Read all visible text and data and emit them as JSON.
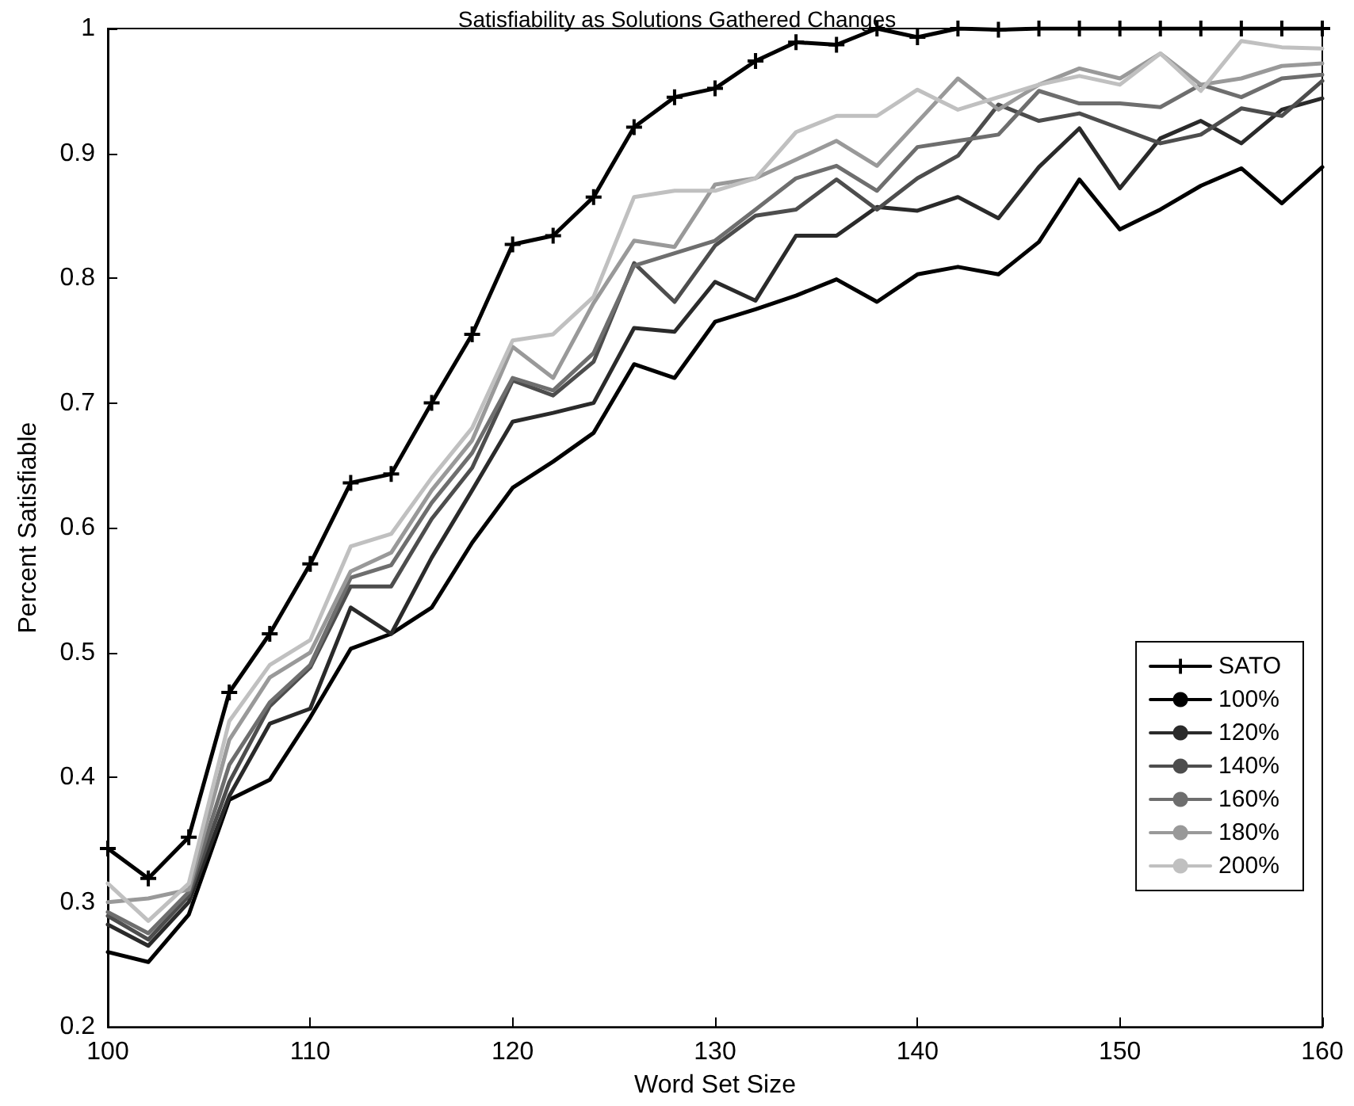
{
  "chart_data": {
    "type": "line",
    "title": "Satisfiability as Solutions Gathered Changes",
    "xlabel": "Word Set Size",
    "ylabel": "Percent Satisfiable",
    "x": [
      100,
      102,
      104,
      106,
      108,
      110,
      112,
      114,
      116,
      118,
      120,
      122,
      124,
      126,
      128,
      130,
      132,
      134,
      136,
      138,
      140,
      142,
      144,
      146,
      148,
      150,
      152,
      154,
      156,
      158,
      160
    ],
    "series": [
      {
        "name": "SATO",
        "color": "#000000",
        "marker": "cross",
        "values": [
          0.343,
          0.319,
          0.352,
          0.468,
          0.515,
          0.571,
          0.636,
          0.643,
          0.7,
          0.755,
          0.827,
          0.834,
          0.865,
          0.921,
          0.945,
          0.952,
          0.974,
          0.989,
          0.987,
          1.0,
          0.993,
          1.0,
          0.999,
          1,
          1,
          1,
          1,
          1,
          1,
          1,
          1
        ]
      },
      {
        "name": "100%",
        "color": "#000000",
        "values": [
          0.26,
          0.252,
          0.29,
          0.382,
          0.398,
          0.448,
          0.503,
          0.515,
          0.536,
          0.588,
          0.632,
          0.653,
          0.676,
          0.731,
          0.72,
          0.765,
          0.775,
          0.786,
          0.799,
          0.781,
          0.803,
          0.809,
          0.803,
          0.829,
          0.879,
          0.839,
          0.855,
          0.874,
          0.888,
          0.86,
          0.889
        ]
      },
      {
        "name": "120%",
        "color": "#2a2a2a",
        "values": [
          0.282,
          0.265,
          0.3,
          0.385,
          0.443,
          0.455,
          0.536,
          0.515,
          0.576,
          0.63,
          0.685,
          0.692,
          0.7,
          0.76,
          0.757,
          0.797,
          0.782,
          0.834,
          0.834,
          0.857,
          0.854,
          0.865,
          0.848,
          0.889,
          0.92,
          0.872,
          0.912,
          0.926,
          0.908,
          0.935,
          0.944
        ]
      },
      {
        "name": "140%",
        "color": "#4d4d4d",
        "values": [
          0.289,
          0.27,
          0.305,
          0.396,
          0.457,
          0.488,
          0.553,
          0.553,
          0.607,
          0.648,
          0.718,
          0.706,
          0.733,
          0.812,
          0.781,
          0.826,
          0.85,
          0.855,
          0.879,
          0.855,
          0.88,
          0.898,
          0.939,
          0.926,
          0.932,
          0.92,
          0.908,
          0.915,
          0.936,
          0.93,
          0.958
        ]
      },
      {
        "name": "160%",
        "color": "#6e6e6e",
        "values": [
          0.292,
          0.275,
          0.308,
          0.41,
          0.46,
          0.49,
          0.56,
          0.57,
          0.62,
          0.66,
          0.72,
          0.71,
          0.74,
          0.81,
          0.82,
          0.83,
          0.855,
          0.88,
          0.89,
          0.87,
          0.905,
          0.91,
          0.915,
          0.95,
          0.94,
          0.94,
          0.937,
          0.955,
          0.945,
          0.96,
          0.963
        ]
      },
      {
        "name": "180%",
        "color": "#999999",
        "values": [
          0.3,
          0.303,
          0.31,
          0.43,
          0.48,
          0.5,
          0.565,
          0.58,
          0.63,
          0.67,
          0.745,
          0.72,
          0.78,
          0.83,
          0.825,
          0.875,
          0.88,
          0.895,
          0.91,
          0.89,
          0.925,
          0.96,
          0.935,
          0.955,
          0.968,
          0.96,
          0.98,
          0.955,
          0.96,
          0.97,
          0.972
        ]
      },
      {
        "name": "200%",
        "color": "#c0c0c0",
        "values": [
          0.315,
          0.285,
          0.315,
          0.445,
          0.49,
          0.51,
          0.585,
          0.595,
          0.64,
          0.68,
          0.75,
          0.755,
          0.785,
          0.865,
          0.87,
          0.87,
          0.88,
          0.917,
          0.93,
          0.93,
          0.951,
          0.935,
          0.945,
          0.955,
          0.962,
          0.955,
          0.98,
          0.95,
          0.99,
          0.985,
          0.984
        ]
      }
    ],
    "xlim": [
      100,
      160
    ],
    "xticks": [
      100,
      110,
      120,
      130,
      140,
      150,
      160
    ],
    "ylim": [
      0.2,
      1
    ],
    "yticks": [
      0.2,
      0.3,
      0.4,
      0.5,
      0.6,
      0.7,
      0.8,
      0.9,
      1
    ],
    "grid": false,
    "legend": "bottom right",
    "marker": "none",
    "line_style": "solid"
  }
}
